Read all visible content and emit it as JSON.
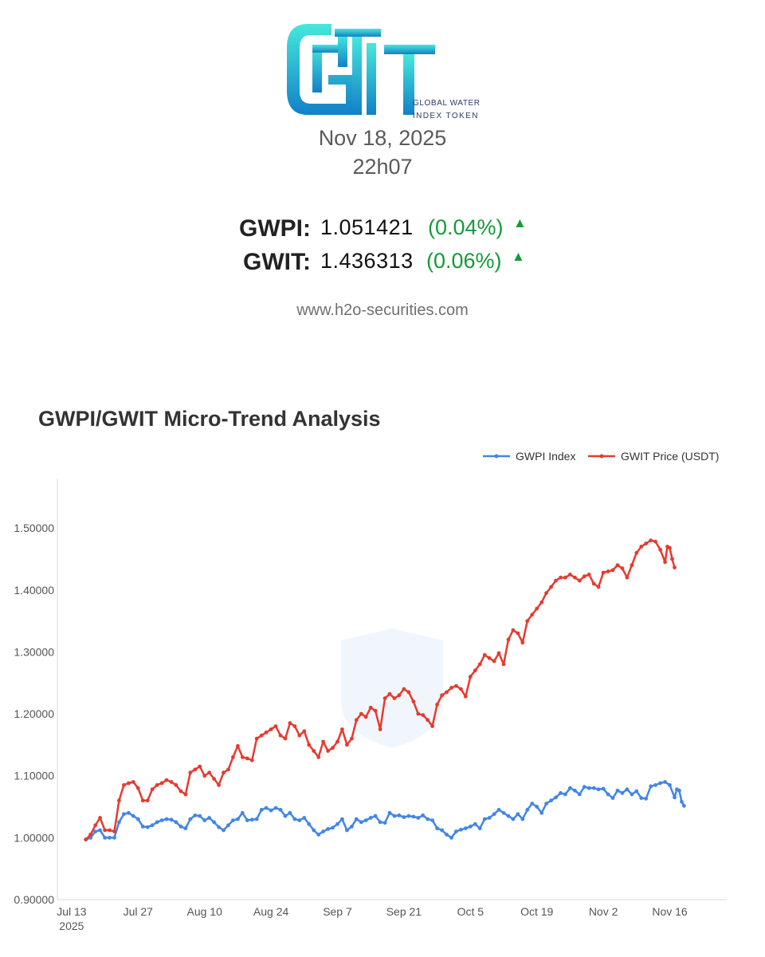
{
  "brand": {
    "line1": "GLOBAL WATER",
    "line2": "INDEX TOKEN",
    "colors": {
      "top": "#46e8dc",
      "bottom": "#1280c8"
    }
  },
  "header": {
    "date": "Nov 18, 2025",
    "time": "22h07"
  },
  "tickers": [
    {
      "symbol": "GWPI:",
      "value": "1.051421",
      "change": "(0.04%)",
      "direction": "up-arrow-icon"
    },
    {
      "symbol": "GWIT:",
      "value": "1.436313",
      "change": "(0.06%)",
      "direction": "up-arrow-icon"
    }
  ],
  "website": "www.h2o-securities.com",
  "chart_data": {
    "type": "line",
    "title": "GWPI/GWIT Micro-Trend Analysis",
    "xlabel": "",
    "ylabel": "",
    "ylim": [
      0.9,
      1.58
    ],
    "yticks": [
      "0.90000",
      "1.00000",
      "1.10000",
      "1.20000",
      "1.30000",
      "1.40000",
      "1.50000"
    ],
    "xticks": [
      {
        "label": "Jul 13",
        "sub": "2025",
        "day": 0
      },
      {
        "label": "Jul 27",
        "sub": "",
        "day": 14
      },
      {
        "label": "Aug 10",
        "sub": "",
        "day": 28
      },
      {
        "label": "Aug 24",
        "sub": "",
        "day": 42
      },
      {
        "label": "Sep 7",
        "sub": "",
        "day": 56
      },
      {
        "label": "Sep 21",
        "sub": "",
        "day": 70
      },
      {
        "label": "Oct 5",
        "sub": "",
        "day": 84
      },
      {
        "label": "Oct 19",
        "sub": "",
        "day": 98
      },
      {
        "label": "Nov 2",
        "sub": "",
        "day": 112
      },
      {
        "label": "Nov 16",
        "sub": "",
        "day": 126
      }
    ],
    "xlim_days": [
      -3,
      138
    ],
    "grid": false,
    "legend_position": "top-right",
    "series": [
      {
        "name": "GWPI Index",
        "color": "#4285e8",
        "points": [
          [
            3,
            0.997
          ],
          [
            4,
            1.0
          ],
          [
            5,
            1.01
          ],
          [
            6,
            1.012
          ],
          [
            7,
            1.0
          ],
          [
            8,
            1.0
          ],
          [
            9,
            1.0
          ],
          [
            10,
            1.025
          ],
          [
            11,
            1.038
          ],
          [
            12,
            1.04
          ],
          [
            13,
            1.035
          ],
          [
            14,
            1.03
          ],
          [
            15,
            1.018
          ],
          [
            16,
            1.017
          ],
          [
            17,
            1.02
          ],
          [
            18,
            1.025
          ],
          [
            19,
            1.028
          ],
          [
            20,
            1.03
          ],
          [
            21,
            1.029
          ],
          [
            22,
            1.025
          ],
          [
            23,
            1.018
          ],
          [
            24,
            1.015
          ],
          [
            25,
            1.03
          ],
          [
            26,
            1.036
          ],
          [
            27,
            1.035
          ],
          [
            28,
            1.028
          ],
          [
            29,
            1.032
          ],
          [
            30,
            1.025
          ],
          [
            31,
            1.017
          ],
          [
            32,
            1.012
          ],
          [
            33,
            1.02
          ],
          [
            34,
            1.028
          ],
          [
            35,
            1.03
          ],
          [
            36,
            1.04
          ],
          [
            37,
            1.028
          ],
          [
            38,
            1.029
          ],
          [
            39,
            1.03
          ],
          [
            40,
            1.045
          ],
          [
            41,
            1.048
          ],
          [
            42,
            1.044
          ],
          [
            43,
            1.048
          ],
          [
            44,
            1.045
          ],
          [
            45,
            1.035
          ],
          [
            46,
            1.04
          ],
          [
            47,
            1.03
          ],
          [
            48,
            1.028
          ],
          [
            49,
            1.032
          ],
          [
            50,
            1.022
          ],
          [
            51,
            1.012
          ],
          [
            52,
            1.005
          ],
          [
            53,
            1.01
          ],
          [
            54,
            1.014
          ],
          [
            55,
            1.016
          ],
          [
            56,
            1.022
          ],
          [
            57,
            1.03
          ],
          [
            58,
            1.012
          ],
          [
            59,
            1.018
          ],
          [
            60,
            1.03
          ],
          [
            61,
            1.025
          ],
          [
            62,
            1.028
          ],
          [
            63,
            1.032
          ],
          [
            64,
            1.035
          ],
          [
            65,
            1.025
          ],
          [
            66,
            1.024
          ],
          [
            67,
            1.04
          ],
          [
            68,
            1.035
          ],
          [
            69,
            1.036
          ],
          [
            70,
            1.033
          ],
          [
            71,
            1.035
          ],
          [
            72,
            1.034
          ],
          [
            73,
            1.032
          ],
          [
            74,
            1.036
          ],
          [
            75,
            1.03
          ],
          [
            76,
            1.028
          ],
          [
            77,
            1.015
          ],
          [
            78,
            1.012
          ],
          [
            79,
            1.005
          ],
          [
            80,
            1.0
          ],
          [
            81,
            1.01
          ],
          [
            82,
            1.013
          ],
          [
            83,
            1.015
          ],
          [
            84,
            1.018
          ],
          [
            85,
            1.022
          ],
          [
            86,
            1.015
          ],
          [
            87,
            1.03
          ],
          [
            88,
            1.032
          ],
          [
            89,
            1.038
          ],
          [
            90,
            1.045
          ],
          [
            91,
            1.04
          ],
          [
            92,
            1.035
          ],
          [
            93,
            1.03
          ],
          [
            94,
            1.038
          ],
          [
            95,
            1.03
          ],
          [
            96,
            1.045
          ],
          [
            97,
            1.055
          ],
          [
            98,
            1.05
          ],
          [
            99,
            1.04
          ],
          [
            100,
            1.055
          ],
          [
            101,
            1.06
          ],
          [
            102,
            1.065
          ],
          [
            103,
            1.072
          ],
          [
            104,
            1.07
          ],
          [
            105,
            1.08
          ],
          [
            106,
            1.076
          ],
          [
            107,
            1.07
          ],
          [
            108,
            1.082
          ],
          [
            109,
            1.08
          ],
          [
            110,
            1.08
          ],
          [
            111,
            1.078
          ],
          [
            112,
            1.079
          ],
          [
            113,
            1.07
          ],
          [
            114,
            1.064
          ],
          [
            115,
            1.076
          ],
          [
            116,
            1.072
          ],
          [
            117,
            1.078
          ],
          [
            118,
            1.07
          ],
          [
            119,
            1.075
          ],
          [
            120,
            1.064
          ],
          [
            121,
            1.063
          ],
          [
            122,
            1.083
          ],
          [
            123,
            1.085
          ],
          [
            124,
            1.088
          ],
          [
            125,
            1.09
          ],
          [
            126,
            1.085
          ],
          [
            127,
            1.065
          ],
          [
            127.5,
            1.078
          ],
          [
            128,
            1.076
          ],
          [
            128.5,
            1.058
          ],
          [
            129,
            1.0514
          ]
        ]
      },
      {
        "name": "GWIT Price (USDT)",
        "color": "#e53b2f",
        "points": [
          [
            3,
            0.997
          ],
          [
            4,
            1.005
          ],
          [
            5,
            1.02
          ],
          [
            6,
            1.032
          ],
          [
            7,
            1.012
          ],
          [
            8,
            1.012
          ],
          [
            9,
            1.01
          ],
          [
            10,
            1.06
          ],
          [
            11,
            1.085
          ],
          [
            12,
            1.088
          ],
          [
            13,
            1.09
          ],
          [
            14,
            1.08
          ],
          [
            15,
            1.06
          ],
          [
            16,
            1.06
          ],
          [
            17,
            1.078
          ],
          [
            18,
            1.085
          ],
          [
            19,
            1.088
          ],
          [
            20,
            1.093
          ],
          [
            21,
            1.09
          ],
          [
            22,
            1.085
          ],
          [
            23,
            1.075
          ],
          [
            24,
            1.07
          ],
          [
            25,
            1.105
          ],
          [
            26,
            1.11
          ],
          [
            27,
            1.115
          ],
          [
            28,
            1.1
          ],
          [
            29,
            1.105
          ],
          [
            30,
            1.095
          ],
          [
            31,
            1.085
          ],
          [
            32,
            1.105
          ],
          [
            33,
            1.11
          ],
          [
            34,
            1.13
          ],
          [
            35,
            1.148
          ],
          [
            36,
            1.13
          ],
          [
            37,
            1.128
          ],
          [
            38,
            1.125
          ],
          [
            39,
            1.16
          ],
          [
            40,
            1.165
          ],
          [
            41,
            1.17
          ],
          [
            42,
            1.175
          ],
          [
            43,
            1.18
          ],
          [
            44,
            1.165
          ],
          [
            45,
            1.16
          ],
          [
            46,
            1.185
          ],
          [
            47,
            1.18
          ],
          [
            48,
            1.165
          ],
          [
            49,
            1.172
          ],
          [
            50,
            1.15
          ],
          [
            51,
            1.14
          ],
          [
            52,
            1.13
          ],
          [
            53,
            1.155
          ],
          [
            54,
            1.14
          ],
          [
            55,
            1.145
          ],
          [
            56,
            1.155
          ],
          [
            57,
            1.175
          ],
          [
            58,
            1.15
          ],
          [
            59,
            1.16
          ],
          [
            60,
            1.19
          ],
          [
            61,
            1.2
          ],
          [
            62,
            1.195
          ],
          [
            63,
            1.21
          ],
          [
            64,
            1.205
          ],
          [
            65,
            1.175
          ],
          [
            66,
            1.225
          ],
          [
            67,
            1.232
          ],
          [
            68,
            1.225
          ],
          [
            69,
            1.23
          ],
          [
            70,
            1.24
          ],
          [
            71,
            1.235
          ],
          [
            72,
            1.22
          ],
          [
            73,
            1.2
          ],
          [
            74,
            1.198
          ],
          [
            75,
            1.19
          ],
          [
            76,
            1.18
          ],
          [
            77,
            1.215
          ],
          [
            78,
            1.23
          ],
          [
            79,
            1.235
          ],
          [
            80,
            1.242
          ],
          [
            81,
            1.245
          ],
          [
            82,
            1.24
          ],
          [
            83,
            1.228
          ],
          [
            84,
            1.26
          ],
          [
            85,
            1.27
          ],
          [
            86,
            1.28
          ],
          [
            87,
            1.295
          ],
          [
            88,
            1.29
          ],
          [
            89,
            1.285
          ],
          [
            90,
            1.298
          ],
          [
            91,
            1.28
          ],
          [
            92,
            1.32
          ],
          [
            93,
            1.335
          ],
          [
            94,
            1.33
          ],
          [
            95,
            1.315
          ],
          [
            96,
            1.35
          ],
          [
            97,
            1.36
          ],
          [
            98,
            1.37
          ],
          [
            99,
            1.38
          ],
          [
            100,
            1.395
          ],
          [
            101,
            1.405
          ],
          [
            102,
            1.415
          ],
          [
            103,
            1.42
          ],
          [
            104,
            1.42
          ],
          [
            105,
            1.425
          ],
          [
            106,
            1.42
          ],
          [
            107,
            1.415
          ],
          [
            108,
            1.422
          ],
          [
            109,
            1.425
          ],
          [
            110,
            1.41
          ],
          [
            111,
            1.405
          ],
          [
            112,
            1.428
          ],
          [
            113,
            1.43
          ],
          [
            114,
            1.432
          ],
          [
            115,
            1.44
          ],
          [
            116,
            1.435
          ],
          [
            117,
            1.42
          ],
          [
            118,
            1.44
          ],
          [
            119,
            1.46
          ],
          [
            120,
            1.47
          ],
          [
            121,
            1.475
          ],
          [
            122,
            1.48
          ],
          [
            123,
            1.478
          ],
          [
            124,
            1.465
          ],
          [
            125,
            1.445
          ],
          [
            125.5,
            1.47
          ],
          [
            126,
            1.468
          ],
          [
            126.5,
            1.45
          ],
          [
            127,
            1.4363
          ]
        ]
      }
    ]
  }
}
